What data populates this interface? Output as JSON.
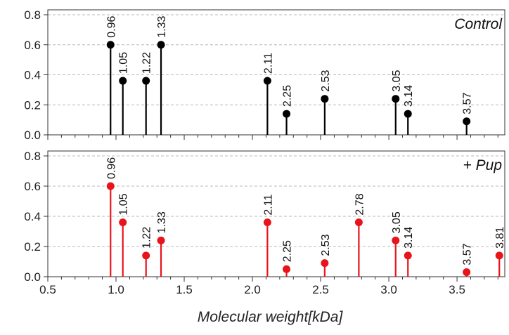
{
  "chart_data": [
    {
      "type": "stem",
      "panel_label": "Control",
      "color": "#000000",
      "xlabel": "",
      "ylabel": "",
      "xlim": [
        0.5,
        3.85
      ],
      "ylim": [
        0,
        0.8
      ],
      "yticks": [
        0.0,
        0.2,
        0.4,
        0.6,
        0.8
      ],
      "ytick_labels": [
        "0.0",
        "0.2",
        "0.4",
        "0.6",
        "0.8"
      ],
      "grid": "horizontal dashed",
      "points": [
        {
          "x": 0.96,
          "y": 0.6,
          "label": "0.96"
        },
        {
          "x": 1.05,
          "y": 0.36,
          "label": "1.05"
        },
        {
          "x": 1.22,
          "y": 0.36,
          "label": "1.22"
        },
        {
          "x": 1.33,
          "y": 0.6,
          "label": "1.33"
        },
        {
          "x": 2.11,
          "y": 0.36,
          "label": "2.11"
        },
        {
          "x": 2.25,
          "y": 0.14,
          "label": "2.25"
        },
        {
          "x": 2.53,
          "y": 0.24,
          "label": "2.53"
        },
        {
          "x": 3.05,
          "y": 0.24,
          "label": "3.05"
        },
        {
          "x": 3.14,
          "y": 0.14,
          "label": "3.14"
        },
        {
          "x": 3.57,
          "y": 0.09,
          "label": "3.57"
        }
      ]
    },
    {
      "type": "stem",
      "panel_label": "+ Pup",
      "color": "#e8141c",
      "xlabel": "Molecular weight[kDa]",
      "ylabel": "",
      "xlim": [
        0.5,
        3.85
      ],
      "ylim": [
        0,
        0.8
      ],
      "xticks": [
        0.5,
        1.0,
        1.5,
        2.0,
        2.5,
        3.0,
        3.5
      ],
      "xtick_labels": [
        "0.5",
        "1.0",
        "1.5",
        "2.0",
        "2.5",
        "3.0",
        "3.5"
      ],
      "yticks": [
        0.0,
        0.2,
        0.4,
        0.6,
        0.8
      ],
      "ytick_labels": [
        "0.0",
        "0.2",
        "0.4",
        "0.6",
        "0.8"
      ],
      "grid": "horizontal dashed",
      "points": [
        {
          "x": 0.96,
          "y": 0.6,
          "label": "0.96"
        },
        {
          "x": 1.05,
          "y": 0.36,
          "label": "1.05"
        },
        {
          "x": 1.22,
          "y": 0.14,
          "label": "1.22"
        },
        {
          "x": 1.33,
          "y": 0.24,
          "label": "1.33"
        },
        {
          "x": 2.11,
          "y": 0.36,
          "label": "2.11"
        },
        {
          "x": 2.25,
          "y": 0.05,
          "label": "2.25"
        },
        {
          "x": 2.53,
          "y": 0.09,
          "label": "2.53"
        },
        {
          "x": 2.78,
          "y": 0.36,
          "label": "2.78"
        },
        {
          "x": 3.05,
          "y": 0.24,
          "label": "3.05"
        },
        {
          "x": 3.14,
          "y": 0.14,
          "label": "3.14"
        },
        {
          "x": 3.57,
          "y": 0.03,
          "label": "3.57"
        },
        {
          "x": 3.81,
          "y": 0.14,
          "label": "3.81"
        }
      ]
    }
  ]
}
